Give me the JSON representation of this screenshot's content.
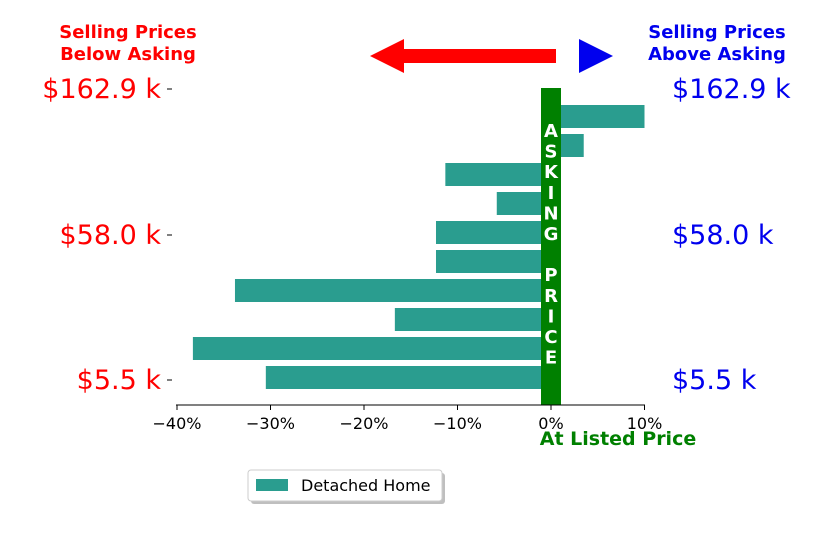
{
  "header": {
    "left_line1": "Selling Prices",
    "left_line2": "Below Asking",
    "right_line1": "Selling Prices",
    "right_line2": "Above Asking",
    "left_color": "#ff0000",
    "right_color": "#0000ee"
  },
  "center_bar": {
    "letters": [
      "A",
      "S",
      "K",
      "I",
      "N",
      "G",
      "",
      "P",
      "R",
      "I",
      "C",
      "E"
    ],
    "color": "#008000"
  },
  "x_caption": "At Listed Price",
  "legend": {
    "label": "Detached Home",
    "placement": "bottom-center"
  },
  "chart_data": {
    "type": "bar",
    "orientation": "horizontal",
    "xlim": [
      -0.43,
      0.12
    ],
    "x_ticks": [
      -0.4,
      -0.3,
      -0.2,
      -0.1,
      0.0,
      0.1
    ],
    "x_tick_labels": [
      "−40%",
      "−30%",
      "−20%",
      "−10%",
      "0%",
      "10%"
    ],
    "y_tick_labels_left": [
      "$162.9 k",
      "$58.0 k",
      "$5.5 k"
    ],
    "y_tick_labels_right": [
      "$162.9 k",
      "$58.0 k",
      "$5.5 k"
    ],
    "series": [
      {
        "name": "Detached Home",
        "color": "#2a9d8f",
        "values": [
          0.1,
          0.035,
          -0.113,
          -0.058,
          -0.123,
          -0.123,
          -0.338,
          -0.167,
          -0.383,
          -0.305
        ]
      }
    ]
  }
}
